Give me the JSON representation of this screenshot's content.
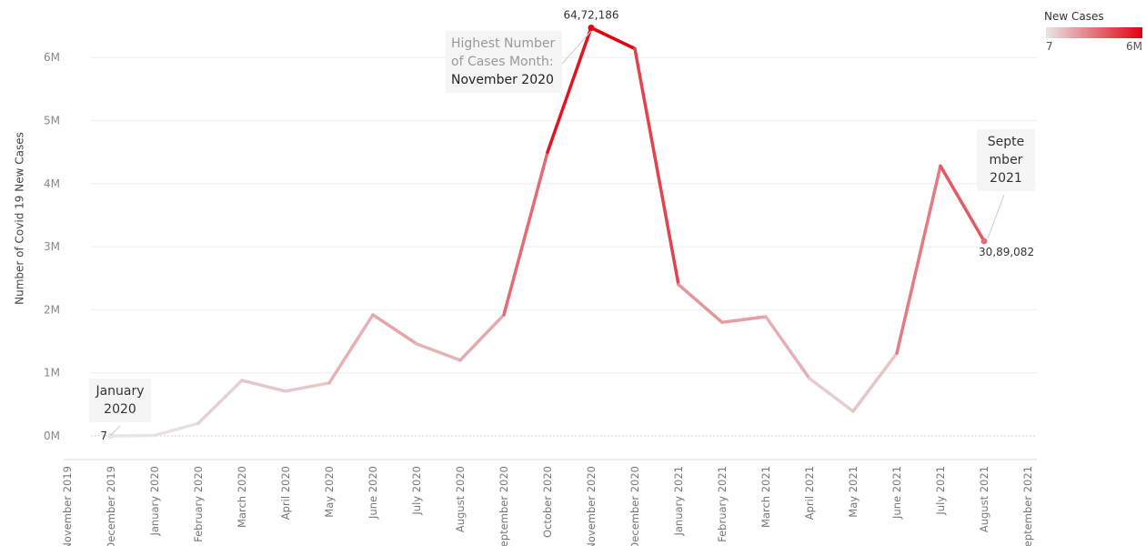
{
  "chart_data": {
    "type": "line",
    "y_axis_label": "Number of Covid 19 New Cases",
    "categories": [
      "November 2019",
      "December 2019",
      "January 2020",
      "February 2020",
      "March 2020",
      "April 2020",
      "May 2020",
      "June 2020",
      "July 2020",
      "August 2020",
      "September 2020",
      "October 2020",
      "November 2020",
      "December 2020",
      "January 2021",
      "February 2021",
      "March 2021",
      "April 2021",
      "May 2021",
      "June 2021",
      "July 2021",
      "August 2021",
      "September 2021"
    ],
    "series": [
      {
        "name": "New Cases",
        "values": [
          null,
          7,
          8000,
          200000,
          880000,
          710000,
          840000,
          1920000,
          1460000,
          1200000,
          1920000,
          4500000,
          6472186,
          6140000,
          2400000,
          1800000,
          1890000,
          910000,
          390000,
          1310000,
          4280000,
          3089082,
          null
        ],
        "value_labels": [
          null,
          "7",
          null,
          null,
          null,
          null,
          null,
          null,
          null,
          null,
          null,
          null,
          "64,72,186",
          null,
          null,
          null,
          null,
          null,
          null,
          null,
          null,
          "30,89,082",
          null
        ]
      }
    ],
    "ylim": [
      -375000,
      6840000
    ],
    "yticks": [
      {
        "value": 0,
        "label": "0M"
      },
      {
        "value": 1000000,
        "label": "1M"
      },
      {
        "value": 2000000,
        "label": "2M"
      },
      {
        "value": 3000000,
        "label": "3M"
      },
      {
        "value": 4000000,
        "label": "4M"
      },
      {
        "value": 5000000,
        "label": "5M"
      },
      {
        "value": 6000000,
        "label": "6M"
      }
    ],
    "grid": true,
    "legend": {
      "title": "New Cases",
      "color_low": "#e6e6e6",
      "color_high": "#e3000f",
      "ticks": [
        7,
        {
          "value": 6000000,
          "label": "6M"
        }
      ]
    },
    "annotations": [
      {
        "text": "January 2020"
      },
      {
        "text": "Highest Number of Cases Month:",
        "emphasis": "November 2020"
      },
      {
        "text": "September 2021"
      }
    ]
  }
}
